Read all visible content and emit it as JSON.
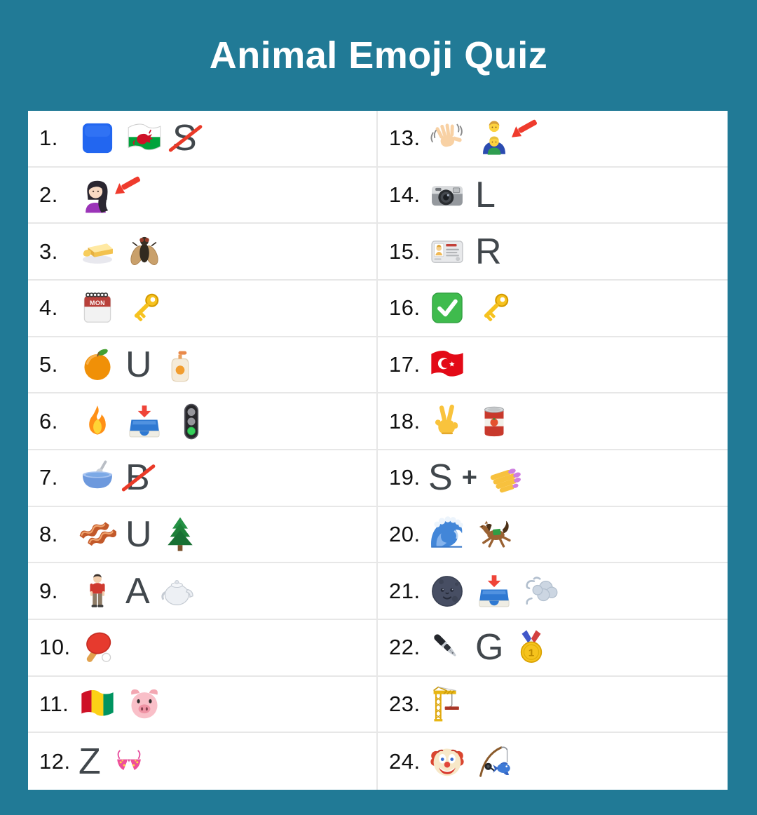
{
  "title": "Animal Emoji Quiz",
  "theme": {
    "background_color": "#217a96",
    "panel_color": "#ffffff",
    "divider_color": "#e7e7e7",
    "title_color": "#ffffff",
    "number_color": "#101010",
    "letter_color": "#41474c",
    "strike_color": "#ea3a28"
  },
  "quiz": {
    "rows": [
      {
        "number": "1.",
        "items": [
          {
            "type": "emoji",
            "icon": "blue-square",
            "char": "🟦",
            "label": "blue square"
          },
          {
            "type": "emoji",
            "icon": "flag-wales",
            "char": "🏴󠁧󠁢󠁷󠁬󠁳󠁿",
            "label": "flag of Wales"
          },
          {
            "type": "letter",
            "value": "S",
            "struck": true
          }
        ]
      },
      {
        "number": "2.",
        "items": [
          {
            "type": "emoji",
            "icon": "woman",
            "char": "👩🏻",
            "label": "woman with long hair"
          },
          {
            "type": "emoji",
            "icon": "red-arrow",
            "label": "red arrow pointing at hair",
            "overlap": true
          }
        ]
      },
      {
        "number": "3.",
        "items": [
          {
            "type": "emoji",
            "icon": "butter",
            "char": "🧈",
            "label": "butter"
          },
          {
            "type": "emoji",
            "icon": "fly",
            "char": "🪰",
            "label": "fly"
          }
        ]
      },
      {
        "number": "4.",
        "items": [
          {
            "type": "emoji",
            "icon": "calendar-mon",
            "char": "📅",
            "label": "calendar showing MON"
          },
          {
            "type": "emoji",
            "icon": "key",
            "char": "🔑",
            "label": "key"
          }
        ]
      },
      {
        "number": "5.",
        "items": [
          {
            "type": "emoji",
            "icon": "tangerine",
            "char": "🍊",
            "label": "tangerine"
          },
          {
            "type": "letter",
            "value": "U",
            "struck": false
          },
          {
            "type": "emoji",
            "icon": "lotion",
            "char": "🧴",
            "label": "lotion bottle"
          }
        ]
      },
      {
        "number": "6.",
        "items": [
          {
            "type": "emoji",
            "icon": "fire",
            "char": "🔥",
            "label": "fire"
          },
          {
            "type": "emoji",
            "icon": "inbox",
            "char": "📥",
            "label": "inbox tray"
          },
          {
            "type": "emoji",
            "icon": "traffic-light",
            "char": "🚦",
            "label": "vertical traffic light"
          }
        ]
      },
      {
        "number": "7.",
        "items": [
          {
            "type": "emoji",
            "icon": "bowl-spoon",
            "char": "🥣",
            "label": "bowl with spoon"
          },
          {
            "type": "letter",
            "value": "B",
            "struck": true
          }
        ]
      },
      {
        "number": "8.",
        "items": [
          {
            "type": "emoji",
            "icon": "bacon",
            "char": "🥓",
            "label": "bacon"
          },
          {
            "type": "letter",
            "value": "U",
            "struck": false
          },
          {
            "type": "emoji",
            "icon": "tree",
            "char": "🌲",
            "label": "evergreen tree"
          }
        ]
      },
      {
        "number": "9.",
        "items": [
          {
            "type": "emoji",
            "icon": "man-standing",
            "char": "🧍‍♂️",
            "label": "man standing"
          },
          {
            "type": "letter",
            "value": "A",
            "struck": false
          },
          {
            "type": "emoji",
            "icon": "teapot",
            "char": "🫖",
            "label": "teapot"
          }
        ]
      },
      {
        "number": "10.",
        "items": [
          {
            "type": "emoji",
            "icon": "ping-pong",
            "char": "🏓",
            "label": "ping pong paddle and ball"
          }
        ]
      },
      {
        "number": "11.",
        "items": [
          {
            "type": "emoji",
            "icon": "flag-guinea",
            "char": "🇬🇳",
            "label": "flag of Guinea"
          },
          {
            "type": "emoji",
            "icon": "pig-face",
            "char": "🐷",
            "label": "pig face"
          }
        ]
      },
      {
        "number": "12.",
        "items": [
          {
            "type": "letter",
            "value": "Z",
            "struck": false
          },
          {
            "type": "emoji",
            "icon": "bikini",
            "char": "👙",
            "label": "bikini"
          }
        ]
      },
      {
        "number": "13.",
        "items": [
          {
            "type": "emoji",
            "icon": "waving-hand",
            "char": "👋",
            "label": "waving hand"
          },
          {
            "type": "emoji",
            "icon": "family-man-boy",
            "char": "👨‍👦",
            "label": "man with boy"
          },
          {
            "type": "emoji",
            "icon": "red-arrow",
            "label": "red arrow pointing at boy",
            "overlap": true
          }
        ]
      },
      {
        "number": "14.",
        "items": [
          {
            "type": "emoji",
            "icon": "camera",
            "char": "📷",
            "label": "camera"
          },
          {
            "type": "letter",
            "value": "L",
            "struck": false
          }
        ]
      },
      {
        "number": "15.",
        "items": [
          {
            "type": "emoji",
            "icon": "id-card",
            "char": "🪪",
            "label": "identification card"
          },
          {
            "type": "letter",
            "value": "R",
            "struck": false
          }
        ]
      },
      {
        "number": "16.",
        "items": [
          {
            "type": "emoji",
            "icon": "check-button",
            "char": "✅",
            "label": "check mark button"
          },
          {
            "type": "emoji",
            "icon": "key",
            "char": "🔑",
            "label": "key"
          }
        ]
      },
      {
        "number": "17.",
        "items": [
          {
            "type": "emoji",
            "icon": "flag-turkey",
            "char": "🇹🇷",
            "label": "flag of Turkey"
          }
        ]
      },
      {
        "number": "18.",
        "items": [
          {
            "type": "emoji",
            "icon": "victory-hand",
            "char": "✌️",
            "label": "victory hand"
          },
          {
            "type": "emoji",
            "icon": "canned-food",
            "char": "🥫",
            "label": "canned food"
          }
        ]
      },
      {
        "number": "19.",
        "items": [
          {
            "type": "letter",
            "value": "S",
            "struck": false
          },
          {
            "type": "plus",
            "value": "+"
          },
          {
            "type": "emoji",
            "icon": "nail-polish",
            "char": "💅",
            "label": "painted nails"
          }
        ]
      },
      {
        "number": "20.",
        "items": [
          {
            "type": "emoji",
            "icon": "wave",
            "char": "🌊",
            "label": "water wave"
          },
          {
            "type": "emoji",
            "icon": "horse",
            "char": "🐎",
            "label": "galloping horse"
          }
        ]
      },
      {
        "number": "21.",
        "items": [
          {
            "type": "emoji",
            "icon": "moon-face",
            "char": "🌚",
            "label": "new moon face"
          },
          {
            "type": "emoji",
            "icon": "inbox",
            "char": "📥",
            "label": "inbox tray"
          },
          {
            "type": "emoji",
            "icon": "dash-wind",
            "char": "💨",
            "label": "dashing away"
          }
        ]
      },
      {
        "number": "22.",
        "items": [
          {
            "type": "emoji",
            "icon": "fountain-pen",
            "char": "🖋️",
            "label": "fountain pen"
          },
          {
            "type": "letter",
            "value": "G",
            "struck": false
          },
          {
            "type": "emoji",
            "icon": "medal-1",
            "char": "🥇",
            "label": "1st place medal"
          }
        ]
      },
      {
        "number": "23.",
        "items": [
          {
            "type": "emoji",
            "icon": "crane",
            "char": "🏗️",
            "label": "construction crane"
          }
        ]
      },
      {
        "number": "24.",
        "items": [
          {
            "type": "emoji",
            "icon": "clown",
            "char": "🤡",
            "label": "clown face"
          },
          {
            "type": "emoji",
            "icon": "fishing-pole",
            "char": "🎣",
            "label": "fishing pole with fish"
          }
        ]
      }
    ]
  }
}
